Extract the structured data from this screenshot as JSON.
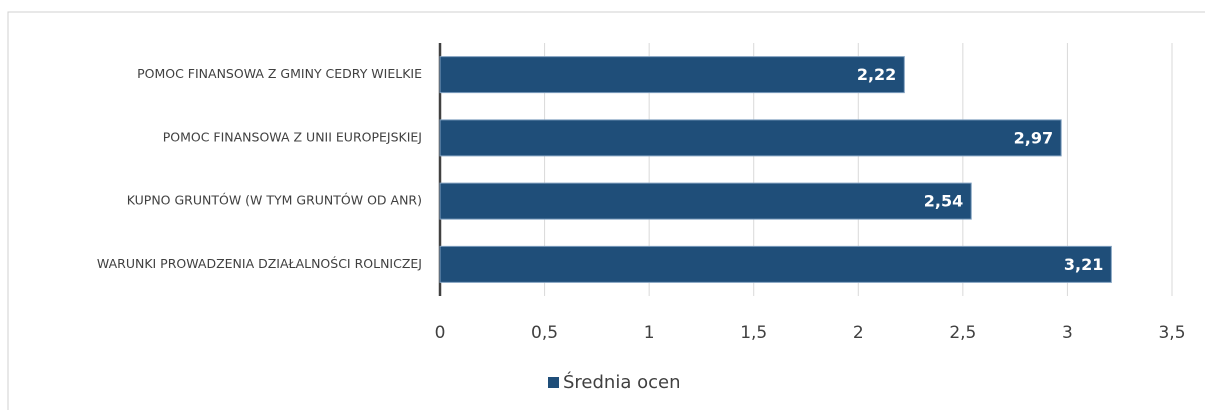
{
  "chart_data": {
    "type": "bar",
    "orientation": "horizontal",
    "categories": [
      "POMOC FINANSOWA Z GMINY CEDRY WIELKIE",
      "POMOC FINANSOWA Z UNII EUROPEJSKIEJ",
      "KUPNO GRUNTÓW (W TYM GRUNTÓW OD ANR)",
      "WARUNKI PROWADZENIA DZIAŁALNOŚCI ROLNICZEJ"
    ],
    "series": [
      {
        "name": "Średnia ocen",
        "color": "#1f4e79",
        "values": [
          2.22,
          2.97,
          2.54,
          3.21
        ],
        "value_labels": [
          "2,22",
          "2,97",
          "2,54",
          "3,21"
        ]
      }
    ],
    "xlim": [
      0,
      3.5
    ],
    "xticks": [
      0,
      {
        "value": 0.5,
        "label": "0,5"
      },
      1,
      {
        "value": 1.5,
        "label": "1,5"
      },
      2,
      {
        "value": 2.5,
        "label": "2,5"
      },
      3,
      {
        "value": 3.5,
        "label": "3,5"
      }
    ],
    "grid": true,
    "legend": "bottom"
  }
}
